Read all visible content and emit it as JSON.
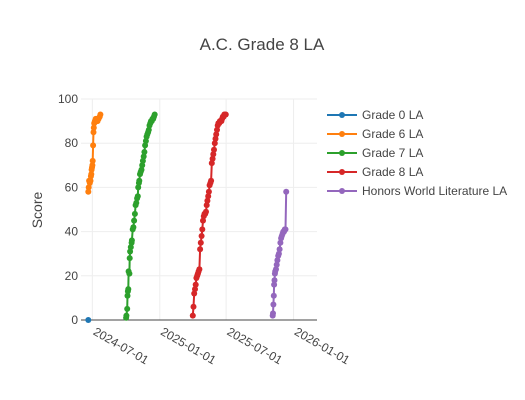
{
  "chart_data": {
    "type": "line",
    "title": "A.C. Grade 8 LA",
    "xlabel": "",
    "ylabel": "Score",
    "x_type": "date",
    "xlim": [
      "2024-05-31",
      "2026-03-06"
    ],
    "ylim": [
      0,
      100
    ],
    "grid": true,
    "legend_placement": "right",
    "y_ticks": [
      0,
      20,
      40,
      60,
      80,
      100
    ],
    "x_ticks": [
      "2024-07-01",
      "2025-01-01",
      "2025-07-01",
      "2026-01-01"
    ],
    "series": [
      {
        "name": "Grade 0 LA",
        "color": "#1f77b4",
        "points": [
          [
            "2024-06-20",
            0
          ]
        ]
      },
      {
        "name": "Grade 6 LA",
        "color": "#ff7f0e",
        "points": [
          [
            "2024-06-20",
            58
          ],
          [
            "2024-06-21",
            60
          ],
          [
            "2024-06-22",
            63
          ],
          [
            "2024-06-24",
            62
          ],
          [
            "2024-06-26",
            63
          ],
          [
            "2024-06-27",
            65
          ],
          [
            "2024-06-28",
            66
          ],
          [
            "2024-06-29",
            68
          ],
          [
            "2024-06-30",
            69
          ],
          [
            "2024-07-01",
            70
          ],
          [
            "2024-07-02",
            72
          ],
          [
            "2024-07-03",
            79
          ],
          [
            "2024-07-04",
            85
          ],
          [
            "2024-07-05",
            87
          ],
          [
            "2024-07-06",
            89
          ],
          [
            "2024-07-08",
            90
          ],
          [
            "2024-07-10",
            91
          ],
          [
            "2024-07-12",
            91
          ],
          [
            "2024-07-15",
            90
          ],
          [
            "2024-07-18",
            91
          ],
          [
            "2024-07-21",
            92
          ],
          [
            "2024-07-23",
            93
          ]
        ]
      },
      {
        "name": "Grade 7 LA",
        "color": "#2ca02c",
        "points": [
          [
            "2024-10-01",
            1
          ],
          [
            "2024-10-02",
            2
          ],
          [
            "2024-10-04",
            5
          ],
          [
            "2024-10-05",
            11
          ],
          [
            "2024-10-06",
            13
          ],
          [
            "2024-10-07",
            14
          ],
          [
            "2024-10-08",
            22
          ],
          [
            "2024-10-10",
            21
          ],
          [
            "2024-10-11",
            28
          ],
          [
            "2024-10-12",
            31
          ],
          [
            "2024-10-14",
            33
          ],
          [
            "2024-10-16",
            35
          ],
          [
            "2024-10-17",
            36
          ],
          [
            "2024-10-19",
            41
          ],
          [
            "2024-10-21",
            42
          ],
          [
            "2024-10-23",
            45
          ],
          [
            "2024-10-25",
            48
          ],
          [
            "2024-10-27",
            52
          ],
          [
            "2024-10-29",
            53
          ],
          [
            "2024-10-31",
            55
          ],
          [
            "2024-11-02",
            56
          ],
          [
            "2024-11-03",
            60
          ],
          [
            "2024-11-05",
            62
          ],
          [
            "2024-11-06",
            63
          ],
          [
            "2024-11-08",
            66
          ],
          [
            "2024-11-10",
            67
          ],
          [
            "2024-11-12",
            68
          ],
          [
            "2024-11-14",
            70
          ],
          [
            "2024-11-16",
            72
          ],
          [
            "2024-11-18",
            74
          ],
          [
            "2024-11-20",
            76
          ],
          [
            "2024-11-22",
            79
          ],
          [
            "2024-11-24",
            81
          ],
          [
            "2024-11-26",
            83
          ],
          [
            "2024-11-28",
            84
          ],
          [
            "2024-11-30",
            85
          ],
          [
            "2024-12-02",
            86
          ],
          [
            "2024-12-04",
            88
          ],
          [
            "2024-12-06",
            89
          ],
          [
            "2024-12-08",
            90
          ],
          [
            "2024-12-10",
            90
          ],
          [
            "2024-12-12",
            91
          ],
          [
            "2024-12-14",
            91
          ],
          [
            "2024-12-16",
            92
          ],
          [
            "2024-12-18",
            93
          ]
        ]
      },
      {
        "name": "Grade 8 LA",
        "color": "#d62728",
        "points": [
          [
            "2025-04-01",
            2
          ],
          [
            "2025-04-03",
            6
          ],
          [
            "2025-04-05",
            12
          ],
          [
            "2025-04-07",
            14
          ],
          [
            "2025-04-09",
            16
          ],
          [
            "2025-04-11",
            19
          ],
          [
            "2025-04-13",
            20
          ],
          [
            "2025-04-15",
            21
          ],
          [
            "2025-04-17",
            22
          ],
          [
            "2025-04-19",
            23
          ],
          [
            "2025-04-21",
            32
          ],
          [
            "2025-04-23",
            35
          ],
          [
            "2025-04-25",
            38
          ],
          [
            "2025-04-27",
            41
          ],
          [
            "2025-04-29",
            45
          ],
          [
            "2025-05-01",
            47
          ],
          [
            "2025-05-03",
            48
          ],
          [
            "2025-05-05",
            48
          ],
          [
            "2025-05-07",
            49
          ],
          [
            "2025-05-09",
            52
          ],
          [
            "2025-05-11",
            54
          ],
          [
            "2025-05-13",
            56
          ],
          [
            "2025-05-15",
            58
          ],
          [
            "2025-05-17",
            61
          ],
          [
            "2025-05-19",
            62
          ],
          [
            "2025-05-21",
            63
          ],
          [
            "2025-05-23",
            71
          ],
          [
            "2025-05-25",
            73
          ],
          [
            "2025-05-27",
            75
          ],
          [
            "2025-05-29",
            77
          ],
          [
            "2025-05-31",
            80
          ],
          [
            "2025-06-02",
            82
          ],
          [
            "2025-06-04",
            84
          ],
          [
            "2025-06-06",
            86
          ],
          [
            "2025-06-08",
            88
          ],
          [
            "2025-06-10",
            89
          ],
          [
            "2025-06-12",
            89
          ],
          [
            "2025-06-14",
            90
          ],
          [
            "2025-06-16",
            90
          ],
          [
            "2025-06-18",
            90
          ],
          [
            "2025-06-20",
            91
          ],
          [
            "2025-06-22",
            92
          ],
          [
            "2025-06-24",
            92
          ],
          [
            "2025-06-26",
            93
          ],
          [
            "2025-06-28",
            93
          ],
          [
            "2025-06-30",
            93
          ]
        ]
      },
      {
        "name": "Honors World Literature LA",
        "color": "#9467bd",
        "points": [
          [
            "2025-11-05",
            2
          ],
          [
            "2025-11-06",
            3
          ],
          [
            "2025-11-07",
            7
          ],
          [
            "2025-11-08",
            11
          ],
          [
            "2025-11-09",
            16
          ],
          [
            "2025-11-10",
            18
          ],
          [
            "2025-11-11",
            21
          ],
          [
            "2025-11-12",
            22
          ],
          [
            "2025-11-14",
            23
          ],
          [
            "2025-11-16",
            25
          ],
          [
            "2025-11-18",
            27
          ],
          [
            "2025-11-20",
            29
          ],
          [
            "2025-11-22",
            30
          ],
          [
            "2025-11-24",
            32
          ],
          [
            "2025-11-26",
            35
          ],
          [
            "2025-11-28",
            37
          ],
          [
            "2025-11-30",
            38
          ],
          [
            "2025-12-02",
            39
          ],
          [
            "2025-12-04",
            40
          ],
          [
            "2025-12-06",
            40
          ],
          [
            "2025-12-08",
            41
          ],
          [
            "2025-12-10",
            41
          ],
          [
            "2025-12-12",
            58
          ]
        ]
      }
    ]
  }
}
